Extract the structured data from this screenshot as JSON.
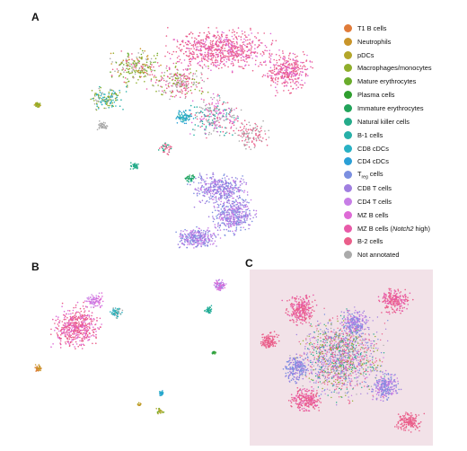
{
  "panels": {
    "a": "A",
    "b": "B",
    "c": "C"
  },
  "legend": [
    {
      "label": "T1 B cells",
      "color": "#e07b39"
    },
    {
      "label": "Neutrophils",
      "color": "#c9952a"
    },
    {
      "label": "pDCs",
      "color": "#b3a62a"
    },
    {
      "label": "Macrophages/monocytes",
      "color": "#8fae2b"
    },
    {
      "label": "Mature erythrocytes",
      "color": "#6aac2c"
    },
    {
      "label": "Plasma cells",
      "color": "#2e9e2e"
    },
    {
      "label": "Immature erythrocytes",
      "color": "#22a35a"
    },
    {
      "label": "Natural killer cells",
      "color": "#25ab8a"
    },
    {
      "label": "B-1 cells",
      "color": "#27b0a8"
    },
    {
      "label": "CD8 cDCs",
      "color": "#29b1c4"
    },
    {
      "label": "CD4 cDCs",
      "color": "#2a9fd6"
    },
    {
      "label": "T",
      "sub": "reg",
      "suffix": " cells",
      "color": "#7b8fe0"
    },
    {
      "label": "CD8 T cells",
      "color": "#a07fe0"
    },
    {
      "label": "CD4 T cells",
      "color": "#c77ee6"
    },
    {
      "label": "MZ B cells",
      "color": "#de6ad6"
    },
    {
      "label": "MZ B cells (",
      "italic": "Notch2",
      "suffix": " high)",
      "color": "#e85aa8"
    },
    {
      "label": "B-2 cells",
      "color": "#ea5e8a"
    },
    {
      "label": "Not annotated",
      "color": "#aaaaaa"
    }
  ]
}
